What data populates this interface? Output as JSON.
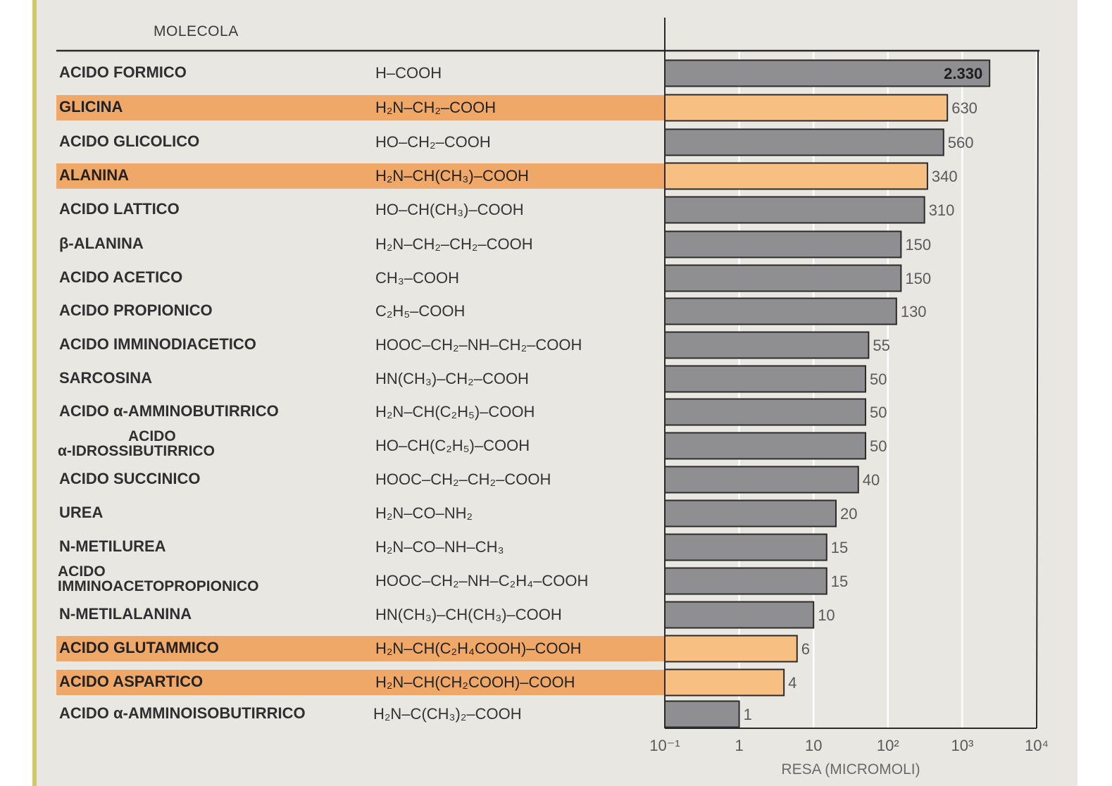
{
  "header": {
    "molecule_label": "MOLECOLA"
  },
  "colors": {
    "paper": "#e9e7e2",
    "bar_default": "#8f8f92",
    "bar_highlight": "#f7bf82",
    "row_highlight": "#f0a868"
  },
  "chart_data": {
    "type": "bar",
    "orientation": "horizontal",
    "xscale": "log",
    "xlim": [
      0.1,
      10000
    ],
    "xlabel": "RESA (MICROMOLI)",
    "xticks": [
      "10⁻¹",
      "1",
      "10",
      "10²",
      "10³",
      "10⁴"
    ],
    "grid": true,
    "rows": [
      {
        "name": [
          "ACIDO FORMICO"
        ],
        "formula": "H–COOH",
        "value": 2330,
        "label": "2.330",
        "highlight": false
      },
      {
        "name": [
          "GLICINA"
        ],
        "formula": "H₂N–CH₂–COOH",
        "value": 630,
        "label": "630",
        "highlight": true
      },
      {
        "name": [
          "ACIDO GLICOLICO"
        ],
        "formula": "HO–CH₂–COOH",
        "value": 560,
        "label": "560",
        "highlight": false
      },
      {
        "name": [
          "ALANINA"
        ],
        "formula": "H₂N–CH(CH₃)–COOH",
        "value": 340,
        "label": "340",
        "highlight": true
      },
      {
        "name": [
          "ACIDO LATTICO"
        ],
        "formula": "HO–CH(CH₃)–COOH",
        "value": 310,
        "label": "310",
        "highlight": false
      },
      {
        "name": [
          "β-ALANINA"
        ],
        "formula": "H₂N–CH₂–CH₂–COOH",
        "value": 150,
        "label": "150",
        "highlight": false
      },
      {
        "name": [
          "ACIDO ACETICO"
        ],
        "formula": "CH₃–COOH",
        "value": 150,
        "label": "150",
        "highlight": false
      },
      {
        "name": [
          "ACIDO PROPIONICO"
        ],
        "formula": "C₂H₅–COOH",
        "value": 130,
        "label": "130",
        "highlight": false
      },
      {
        "name": [
          "ACIDO IMMINODIACETICO"
        ],
        "formula": "HOOC–CH₂–NH–CH₂–COOH",
        "value": 55,
        "label": "55",
        "highlight": false
      },
      {
        "name": [
          "SARCOSINA"
        ],
        "formula": "HN(CH₃)–CH₂–COOH",
        "value": 50,
        "label": "50",
        "highlight": false
      },
      {
        "name": [
          "ACIDO α-AMMINOBUTIRRICO"
        ],
        "formula": "H₂N–CH(C₂H₅)–COOH",
        "value": 50,
        "label": "50",
        "highlight": false
      },
      {
        "name": [
          "ACIDO",
          "α-IDROSSIBUTIRRICO"
        ],
        "formula": "HO–CH(C₂H₅)–COOH",
        "value": 50,
        "label": "50",
        "highlight": false
      },
      {
        "name": [
          "ACIDO SUCCINICO"
        ],
        "formula": "HOOC–CH₂–CH₂–COOH",
        "value": 40,
        "label": "40",
        "highlight": false
      },
      {
        "name": [
          "UREA"
        ],
        "formula": "H₂N–CO–NH₂",
        "value": 20,
        "label": "20",
        "highlight": false
      },
      {
        "name": [
          "N-METILUREA"
        ],
        "formula": "H₂N–CO–NH–CH₃",
        "value": 15,
        "label": "15",
        "highlight": false
      },
      {
        "name": [
          "ACIDO",
          "IMMINOACETOPROPIONICO"
        ],
        "formula": "HOOC–CH₂–NH–C₂H₄–COOH",
        "value": 15,
        "label": "15",
        "highlight": false
      },
      {
        "name": [
          "N-METILALANINA"
        ],
        "formula": "HN(CH₃)–CH(CH₃)–COOH",
        "value": 10,
        "label": "10",
        "highlight": false
      },
      {
        "name": [
          "ACIDO GLUTAMMICO"
        ],
        "formula": "H₂N–CH(C₂H₄COOH)–COOH",
        "value": 6,
        "label": "6",
        "highlight": true
      },
      {
        "name": [
          "ACIDO ASPARTICO"
        ],
        "formula": "H₂N–CH(CH₂COOH)–COOH",
        "value": 4,
        "label": "4",
        "highlight": true
      },
      {
        "name": [
          "ACIDO α-AMMINOISOBUTIRRICO"
        ],
        "formula": "H₂N–C(CH₃)₂–COOH",
        "value": 1,
        "label": "1",
        "highlight": false
      }
    ]
  }
}
